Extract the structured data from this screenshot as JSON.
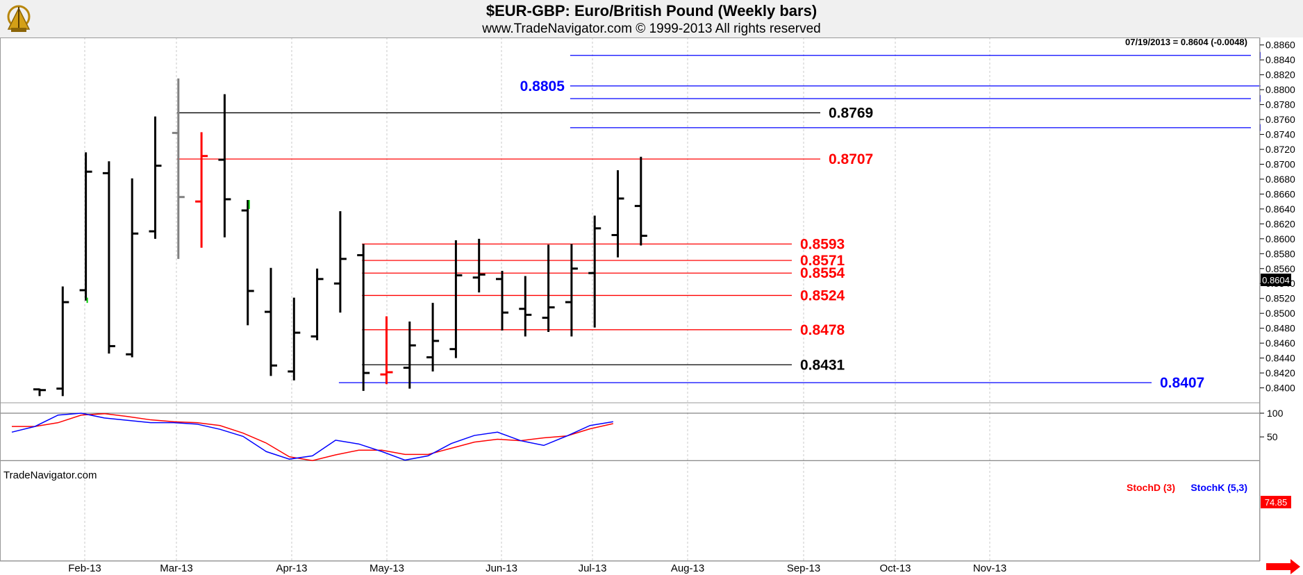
{
  "header": {
    "title": "$EUR-GBP:  Euro/British Pound  (Weekly bars)",
    "subtitle": "www.TradeNavigator.com © 1999-2013 All rights reserved"
  },
  "quote_readout": "07/19/2013 = 0.8604 (-0.0048)",
  "last_price_badge": "0.8604",
  "watermark": "TradeNavigator.com",
  "logo": "navigator-sextant-icon",
  "colors": {
    "up_bar": "#000000",
    "red_bar": "#ff0000",
    "gray_bar": "#808080",
    "green_tick": "#00cc00",
    "red_level": "#ff0000",
    "blue_level": "#0000ff",
    "black_level": "#000000",
    "stoch_d": "#ff0000",
    "stoch_k": "#0000ff",
    "header_bg": "#f0f0f0"
  },
  "chart_data": [
    {
      "type": "ohlc",
      "title": "$EUR-GBP:  Euro/British Pound  (Weekly bars)",
      "y_range": [
        0.838,
        0.887
      ],
      "y_ticks": [
        "0.8400",
        "0.8420",
        "0.8440",
        "0.8460",
        "0.8480",
        "0.8500",
        "0.8520",
        "0.8540",
        "0.8560",
        "0.8580",
        "0.8600",
        "0.8620",
        "0.8640",
        "0.8660",
        "0.8680",
        "0.8700",
        "0.8720",
        "0.8740",
        "0.8760",
        "0.8780",
        "0.8800",
        "0.8820",
        "0.8840",
        "0.8860"
      ],
      "x_labels": [
        "Feb-13",
        "Mar-13",
        "Apr-13",
        "May-13",
        "Jun-13",
        "Jul-13",
        "Aug-13",
        "Sep-13",
        "Oct-13",
        "Nov-13"
      ],
      "bars": [
        {
          "week": "Jan-18",
          "open": 0.8398,
          "high": 0.8399,
          "low": 0.8389,
          "close": 0.8397
        },
        {
          "week": "Jan-25",
          "open": 0.8399,
          "high": 0.8536,
          "low": 0.8389,
          "close": 0.8515
        },
        {
          "week": "Feb-01",
          "open": 0.8531,
          "high": 0.8716,
          "low": 0.8517,
          "close": 0.869
        },
        {
          "week": "Feb-08",
          "open": 0.8688,
          "high": 0.8704,
          "low": 0.8446,
          "close": 0.8456
        },
        {
          "week": "Feb-15",
          "open": 0.8445,
          "high": 0.8681,
          "low": 0.8441,
          "close": 0.8607
        },
        {
          "week": "Feb-22",
          "open": 0.861,
          "high": 0.8764,
          "low": 0.86,
          "close": 0.8698
        },
        {
          "week": "Mar-01",
          "open": 0.8742,
          "high": 0.8815,
          "low": 0.8573,
          "close": 0.8656,
          "color": "gray"
        },
        {
          "week": "Mar-08",
          "open": 0.865,
          "high": 0.8743,
          "low": 0.8588,
          "close": 0.8711,
          "color": "red"
        },
        {
          "week": "Mar-15",
          "open": 0.8706,
          "high": 0.8794,
          "low": 0.8602,
          "close": 0.8653
        },
        {
          "week": "Mar-22",
          "open": 0.8638,
          "high": 0.8652,
          "low": 0.8484,
          "close": 0.853
        },
        {
          "week": "Mar-29",
          "open": 0.8502,
          "high": 0.8561,
          "low": 0.8416,
          "close": 0.843
        },
        {
          "week": "Apr-05",
          "open": 0.8422,
          "high": 0.8521,
          "low": 0.841,
          "close": 0.8474
        },
        {
          "week": "Apr-12",
          "open": 0.8469,
          "high": 0.856,
          "low": 0.8464,
          "close": 0.8546
        },
        {
          "week": "Apr-19",
          "open": 0.854,
          "high": 0.8637,
          "low": 0.8501,
          "close": 0.8573
        },
        {
          "week": "Apr-26",
          "open": 0.8578,
          "high": 0.8593,
          "low": 0.8396,
          "close": 0.842
        },
        {
          "week": "May-03",
          "open": 0.8418,
          "high": 0.8496,
          "low": 0.8405,
          "close": 0.8421,
          "color": "red"
        },
        {
          "week": "May-10",
          "open": 0.8427,
          "high": 0.8489,
          "low": 0.8399,
          "close": 0.8457
        },
        {
          "week": "May-17",
          "open": 0.8441,
          "high": 0.8514,
          "low": 0.8422,
          "close": 0.8463
        },
        {
          "week": "May-24",
          "open": 0.8452,
          "high": 0.8598,
          "low": 0.844,
          "close": 0.8551
        },
        {
          "week": "May-31",
          "open": 0.8548,
          "high": 0.86,
          "low": 0.8528,
          "close": 0.8552
        },
        {
          "week": "Jun-07",
          "open": 0.8546,
          "high": 0.8557,
          "low": 0.8477,
          "close": 0.8501
        },
        {
          "week": "Jun-14",
          "open": 0.8506,
          "high": 0.855,
          "low": 0.8469,
          "close": 0.8498
        },
        {
          "week": "Jun-21",
          "open": 0.8494,
          "high": 0.8592,
          "low": 0.8475,
          "close": 0.8508
        },
        {
          "week": "Jun-28",
          "open": 0.8515,
          "high": 0.8593,
          "low": 0.8469,
          "close": 0.856
        },
        {
          "week": "Jul-05",
          "open": 0.8554,
          "high": 0.8631,
          "low": 0.8481,
          "close": 0.8614
        },
        {
          "week": "Jul-12",
          "open": 0.8605,
          "high": 0.8692,
          "low": 0.8575,
          "close": 0.8654
        },
        {
          "week": "Jul-19",
          "open": 0.8644,
          "high": 0.871,
          "low": 0.8591,
          "close": 0.8604
        }
      ],
      "levels": [
        {
          "value": "0.8846",
          "color": "blue",
          "from_week": "Jun-28",
          "to_week": "Nov-13",
          "label_side": "right"
        },
        {
          "value": "0.8805",
          "color": "blue",
          "from_week": "Jun-28",
          "to_week": "Nov-13",
          "label_side": "left"
        },
        {
          "value": "0.8788",
          "color": "blue",
          "from_week": "Jun-28",
          "to_week": "Nov-13",
          "label_side": "right"
        },
        {
          "value": "0.8769",
          "color": "black",
          "from_week": "Mar-01",
          "to_week": "Aug-13",
          "label_side": "right"
        },
        {
          "value": "0.8749",
          "color": "blue",
          "from_week": "Jun-28",
          "to_week": "Nov-13",
          "label_side": "right"
        },
        {
          "value": "0.8707",
          "color": "red",
          "from_week": "Mar-01",
          "to_week": "Aug-13",
          "label_side": "right"
        },
        {
          "value": "0.8593",
          "color": "red",
          "from_week": "Apr-26",
          "to_week": "Jul-19",
          "label_side": "right"
        },
        {
          "value": "0.8571",
          "color": "red",
          "from_week": "Apr-26",
          "to_week": "Jul-19",
          "label_side": "right"
        },
        {
          "value": "0.8554",
          "color": "red",
          "from_week": "Apr-26",
          "to_week": "Jul-19",
          "label_side": "right"
        },
        {
          "value": "0.8524",
          "color": "red",
          "from_week": "Apr-26",
          "to_week": "Jul-19",
          "label_side": "right"
        },
        {
          "value": "0.8478",
          "color": "red",
          "from_week": "Apr-26",
          "to_week": "Jul-19",
          "label_side": "right"
        },
        {
          "value": "0.8431",
          "color": "black",
          "from_week": "Apr-26",
          "to_week": "Jul-19",
          "label_side": "right"
        },
        {
          "value": "0.8407",
          "color": "blue",
          "from_week": "Apr-19",
          "to_week": "Oct-13",
          "label_side": "right"
        }
      ]
    },
    {
      "type": "line",
      "legend": [
        "StochD (3)",
        "StochK (5,3)"
      ],
      "y_range": [
        -7,
        122
      ],
      "y_ticks": [
        "50",
        "100"
      ],
      "current_badge": "74.85",
      "series": [
        {
          "name": "StochD (3)",
          "color": "red",
          "values": [
            72,
            72,
            80,
            96,
            99,
            93,
            86,
            82,
            80,
            74,
            58,
            37,
            8,
            0,
            12,
            22,
            22,
            13,
            13,
            26,
            39,
            45,
            42,
            48,
            52,
            67,
            78
          ]
        },
        {
          "name": "StochK (5,3)",
          "color": "blue",
          "values": [
            60,
            72,
            96,
            100,
            90,
            85,
            80,
            80,
            77,
            66,
            51,
            19,
            3,
            10,
            43,
            35,
            19,
            1,
            10,
            36,
            53,
            60,
            42,
            32,
            52,
            74,
            82
          ]
        }
      ]
    }
  ]
}
